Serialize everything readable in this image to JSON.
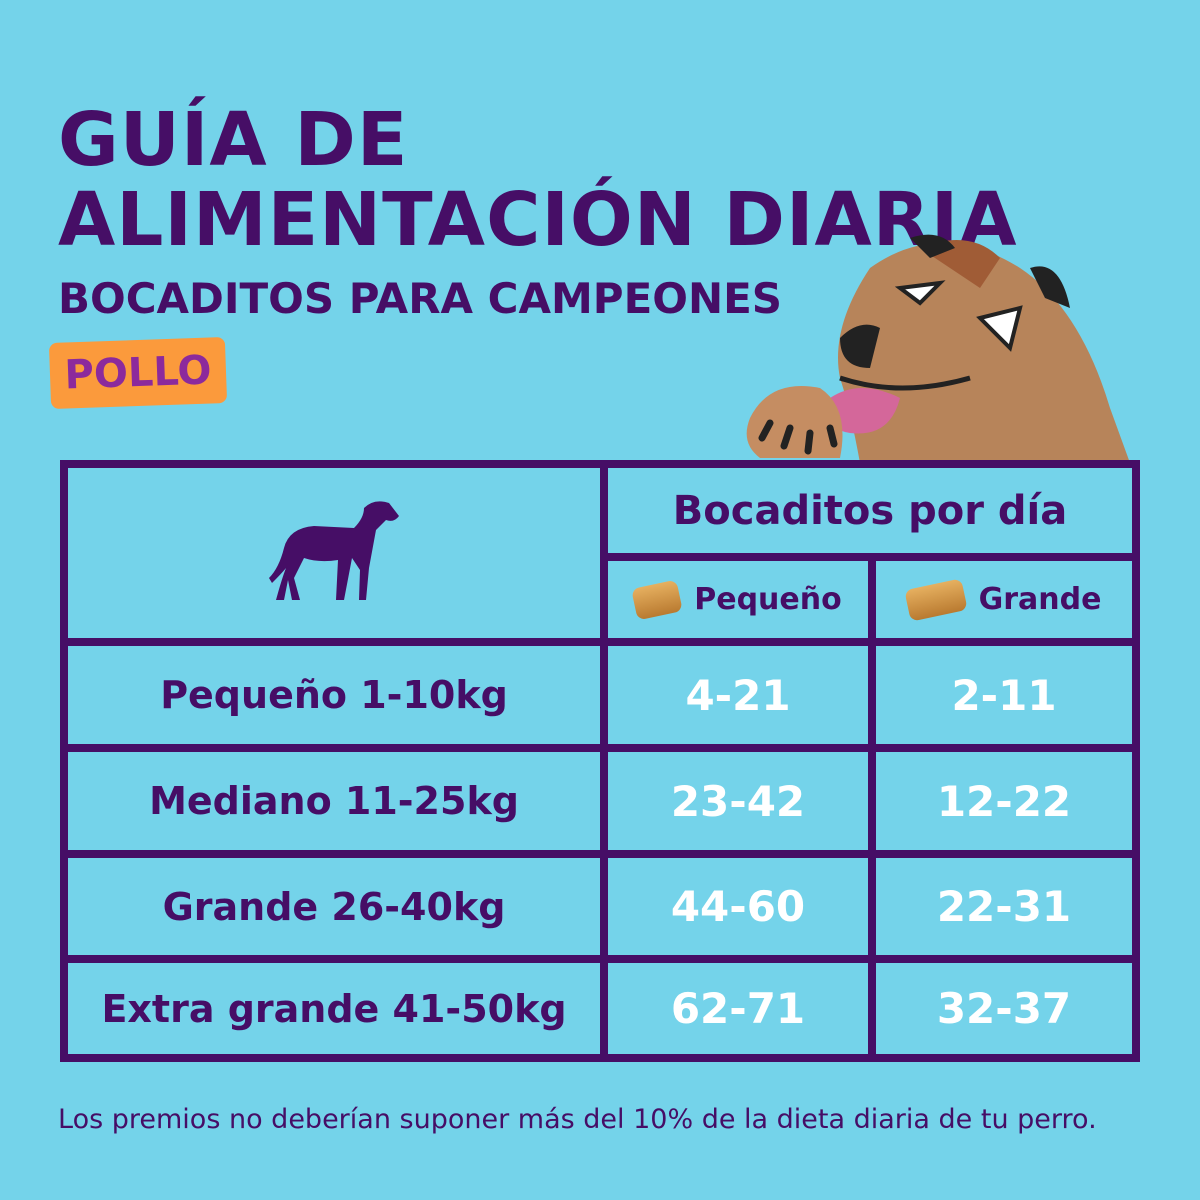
{
  "title": "GUÍA DE ALIMENTACIÓN DIARIA",
  "subtitle": "BOCADITOS PARA CAMPEONES",
  "badge": "POLLO",
  "table": {
    "header": "Bocaditos por día",
    "columns": [
      "Pequeño",
      "Grande"
    ],
    "rows": [
      {
        "label": "Pequeño 1-10kg",
        "values": [
          "4-21",
          "2-11"
        ]
      },
      {
        "label": "Mediano 11-25kg",
        "values": [
          "23-42",
          "12-22"
        ]
      },
      {
        "label": "Grande 26-40kg",
        "values": [
          "44-60",
          "22-31"
        ]
      },
      {
        "label": "Extra grande 41-50kg",
        "values": [
          "62-71",
          "32-37"
        ]
      }
    ]
  },
  "footer": "Los premios no deberían suponer más del 10% de la dieta diaria de tu perro.",
  "colors": {
    "background": "#74d3ea",
    "primary": "#460e66",
    "badge": "#fb9a3c",
    "badge_text": "#8c2a9c"
  }
}
